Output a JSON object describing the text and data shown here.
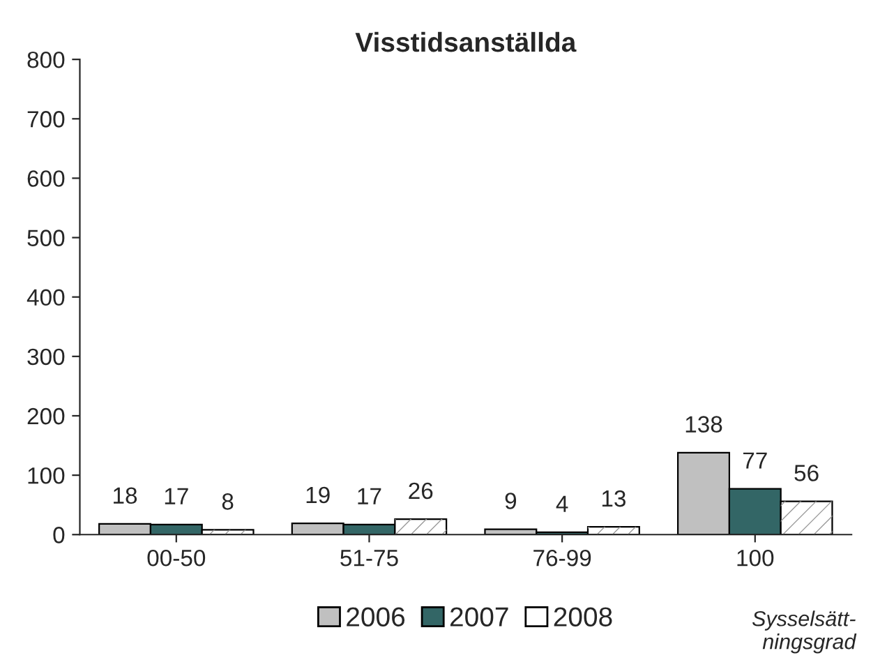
{
  "chart_data": {
    "type": "bar",
    "title": "Visstidsanställda",
    "xlabel": "Sysselsätt-\nningsgrad",
    "categories": [
      "00-50",
      "51-75",
      "76-99",
      "100"
    ],
    "series": [
      {
        "name": "2006",
        "color": "#c0c0c0",
        "values": [
          18,
          19,
          9,
          138
        ]
      },
      {
        "name": "2007",
        "color": "#336666",
        "values": [
          17,
          17,
          4,
          77
        ]
      },
      {
        "name": "2008",
        "color": "#ffffff",
        "values": [
          8,
          26,
          13,
          56
        ]
      }
    ],
    "ylim": [
      0,
      800
    ],
    "yticks": [
      0,
      100,
      200,
      300,
      400,
      500,
      600,
      700,
      800
    ],
    "data_labels": true,
    "legend": "bottom",
    "grid": false
  }
}
